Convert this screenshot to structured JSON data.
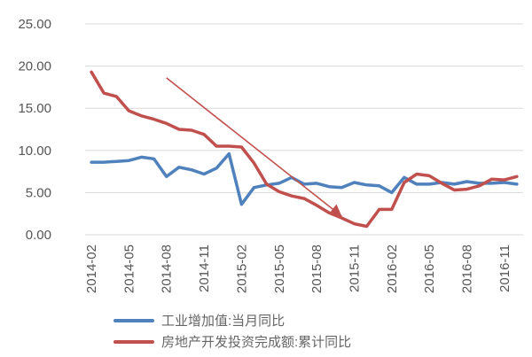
{
  "chart_data": {
    "type": "line",
    "title": "",
    "xlabel": "",
    "ylabel": "",
    "ylim": [
      0,
      25
    ],
    "yticks": [
      "0.00",
      "5.00",
      "10.00",
      "15.00",
      "20.00",
      "25.00"
    ],
    "x": [
      "2014-02",
      "2014-03",
      "2014-04",
      "2014-05",
      "2014-06",
      "2014-07",
      "2014-08",
      "2014-09",
      "2014-10",
      "2014-11",
      "2014-12",
      "2015-01",
      "2015-02",
      "2015-03",
      "2015-04",
      "2015-05",
      "2015-06",
      "2015-07",
      "2015-08",
      "2015-09",
      "2015-10",
      "2015-11",
      "2015-12",
      "2016-01",
      "2016-02",
      "2016-03",
      "2016-04",
      "2016-05",
      "2016-06",
      "2016-07",
      "2016-08",
      "2016-09",
      "2016-10",
      "2016-11",
      "2016-12"
    ],
    "xtick_labels": [
      "2014-02",
      "2014-05",
      "2014-08",
      "2014-11",
      "2015-02",
      "2015-05",
      "2015-08",
      "2015-11",
      "2016-02",
      "2016-05",
      "2016-08",
      "2016-11"
    ],
    "grid": "horizontal",
    "legend_position": "bottom",
    "series": [
      {
        "name": "工业增加值:当月同比",
        "color": "#4f81bd",
        "values": [
          8.6,
          8.6,
          8.7,
          8.8,
          9.2,
          9.0,
          6.9,
          8.0,
          7.7,
          7.2,
          7.9,
          9.6,
          3.6,
          5.6,
          5.9,
          6.1,
          6.8,
          6.0,
          6.1,
          5.7,
          5.6,
          6.2,
          5.9,
          5.8,
          5.0,
          6.8,
          6.0,
          6.0,
          6.2,
          6.0,
          6.3,
          6.1,
          6.1,
          6.2,
          6.0
        ]
      },
      {
        "name": "房地产开发投资完成额:累计同比",
        "color": "#c0504d",
        "values": [
          19.3,
          16.8,
          16.4,
          14.7,
          14.1,
          13.7,
          13.2,
          12.5,
          12.4,
          11.9,
          10.5,
          10.5,
          10.4,
          8.5,
          6.0,
          5.1,
          4.6,
          4.3,
          3.5,
          2.6,
          2.0,
          1.3,
          1.0,
          3.0,
          3.0,
          6.2,
          7.2,
          7.0,
          6.1,
          5.3,
          5.4,
          5.8,
          6.6,
          6.5,
          6.9
        ]
      }
    ],
    "annotation": {
      "type": "arrow",
      "color": "#c0504d",
      "from": {
        "x": "2014-08",
        "y": 18.6
      },
      "to": {
        "x": "2015-10",
        "y": 2.2
      }
    }
  }
}
